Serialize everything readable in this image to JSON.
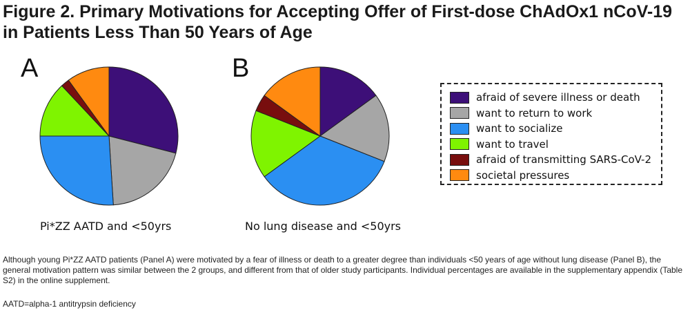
{
  "figure": {
    "title": "Figure 2. Primary Motivations for Accepting Offer of First-dose ChAdOx1 nCoV-19 in Patients Less Than 50 Years of Age",
    "note": "Although young Pi*ZZ AATD patients (Panel A) were motivated by a fear of illness or death to a greater degree than individuals <50 years of age without lung disease (Panel B), the general motivation pattern was similar between the 2 groups, and different from that of older study participants. Individual percentages are available in the supplementary appendix (Table S2) in the online supplement.",
    "footnote": "AATD=alpha-1 antitrypsin deficiency"
  },
  "legend": {
    "items": [
      {
        "label": "afraid of severe illness or death",
        "color": "#3d0f78"
      },
      {
        "label": "want to return to work",
        "color": "#a6a6a6"
      },
      {
        "label": "want to socialize",
        "color": "#2b8ff2"
      },
      {
        "label": "want to travel",
        "color": "#7ff400"
      },
      {
        "label": "afraid of transmitting SARS-CoV-2",
        "color": "#780e0e"
      },
      {
        "label": "societal pressures",
        "color": "#ff8a10"
      }
    ]
  },
  "chart_data": [
    {
      "type": "pie",
      "panel": "A",
      "title": "Pi*ZZ AATD and <50yrs",
      "categories": [
        "afraid of severe illness or death",
        "want to return to work",
        "want to socialize",
        "want to travel",
        "afraid of transmitting SARS-CoV-2",
        "societal pressures"
      ],
      "values": [
        29,
        20,
        26,
        13,
        2,
        10
      ],
      "colors": [
        "#3d0f78",
        "#a6a6a6",
        "#2b8ff2",
        "#7ff400",
        "#780e0e",
        "#ff8a10"
      ]
    },
    {
      "type": "pie",
      "panel": "B",
      "title": "No lung disease and <50yrs",
      "categories": [
        "afraid of severe illness or death",
        "want to return to work",
        "want to socialize",
        "want to travel",
        "afraid of transmitting SARS-CoV-2",
        "societal pressures"
      ],
      "values": [
        15,
        16,
        34,
        16,
        4,
        15
      ],
      "colors": [
        "#3d0f78",
        "#a6a6a6",
        "#2b8ff2",
        "#7ff400",
        "#780e0e",
        "#ff8a10"
      ]
    }
  ]
}
